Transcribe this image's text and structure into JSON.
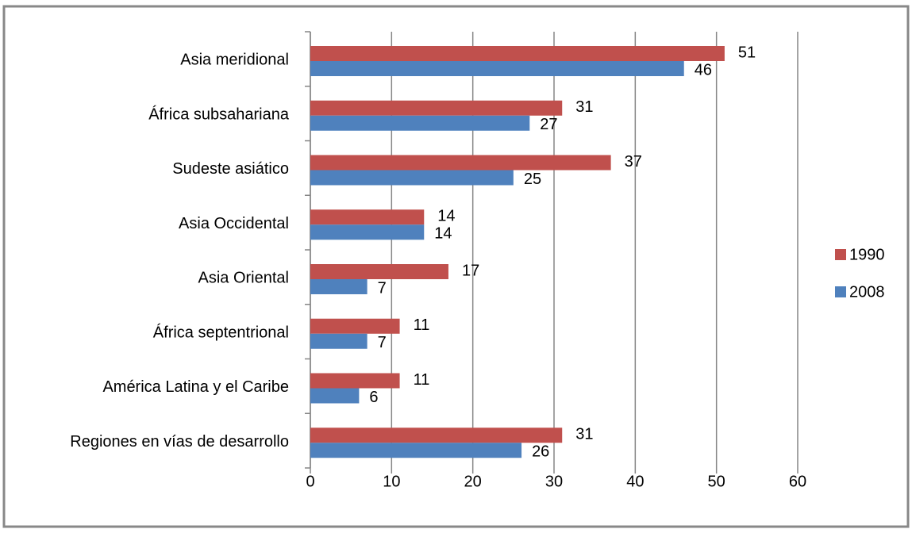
{
  "chart_data": {
    "type": "bar",
    "orientation": "horizontal",
    "categories": [
      "Asia meridional",
      "África subsahariana",
      "Sudeste asiático",
      "Asia Occidental",
      "Asia Oriental",
      "África septentrional",
      "América Latina y el Caribe",
      "Regiones en vías de desarrollo"
    ],
    "series": [
      {
        "name": "1990",
        "color": "#c0504d",
        "values": [
          51,
          31,
          37,
          14,
          17,
          11,
          11,
          31
        ]
      },
      {
        "name": "2008",
        "color": "#4f81bd",
        "values": [
          46,
          27,
          25,
          14,
          7,
          7,
          6,
          26
        ]
      }
    ],
    "xlim": [
      0,
      60
    ],
    "xticks": [
      0,
      10,
      20,
      30,
      40,
      50,
      60
    ],
    "grid": true,
    "legend": "right"
  }
}
